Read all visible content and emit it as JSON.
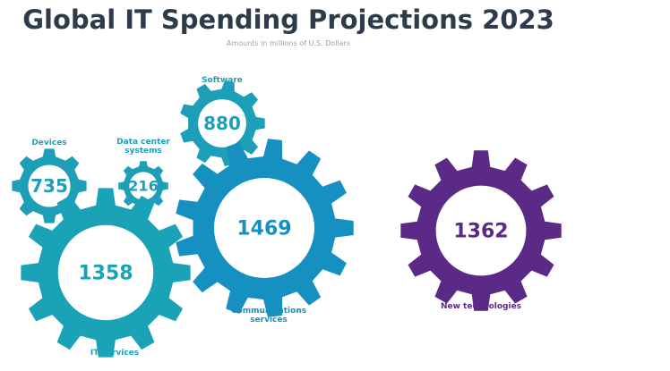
{
  "header": {
    "title": "Global IT Spending Projections 2023",
    "subtitle": "Amounts in millions of U.S. Dollars"
  },
  "items": [
    {
      "label": "Devices",
      "value": "735"
    },
    {
      "label": "Data center systems",
      "value": "216"
    },
    {
      "label": "Software",
      "value": "880"
    },
    {
      "label": "IT services",
      "value": "1358"
    },
    {
      "label": "Communications services",
      "value": "1469"
    },
    {
      "label": "New technologies",
      "value": "1362"
    }
  ]
}
